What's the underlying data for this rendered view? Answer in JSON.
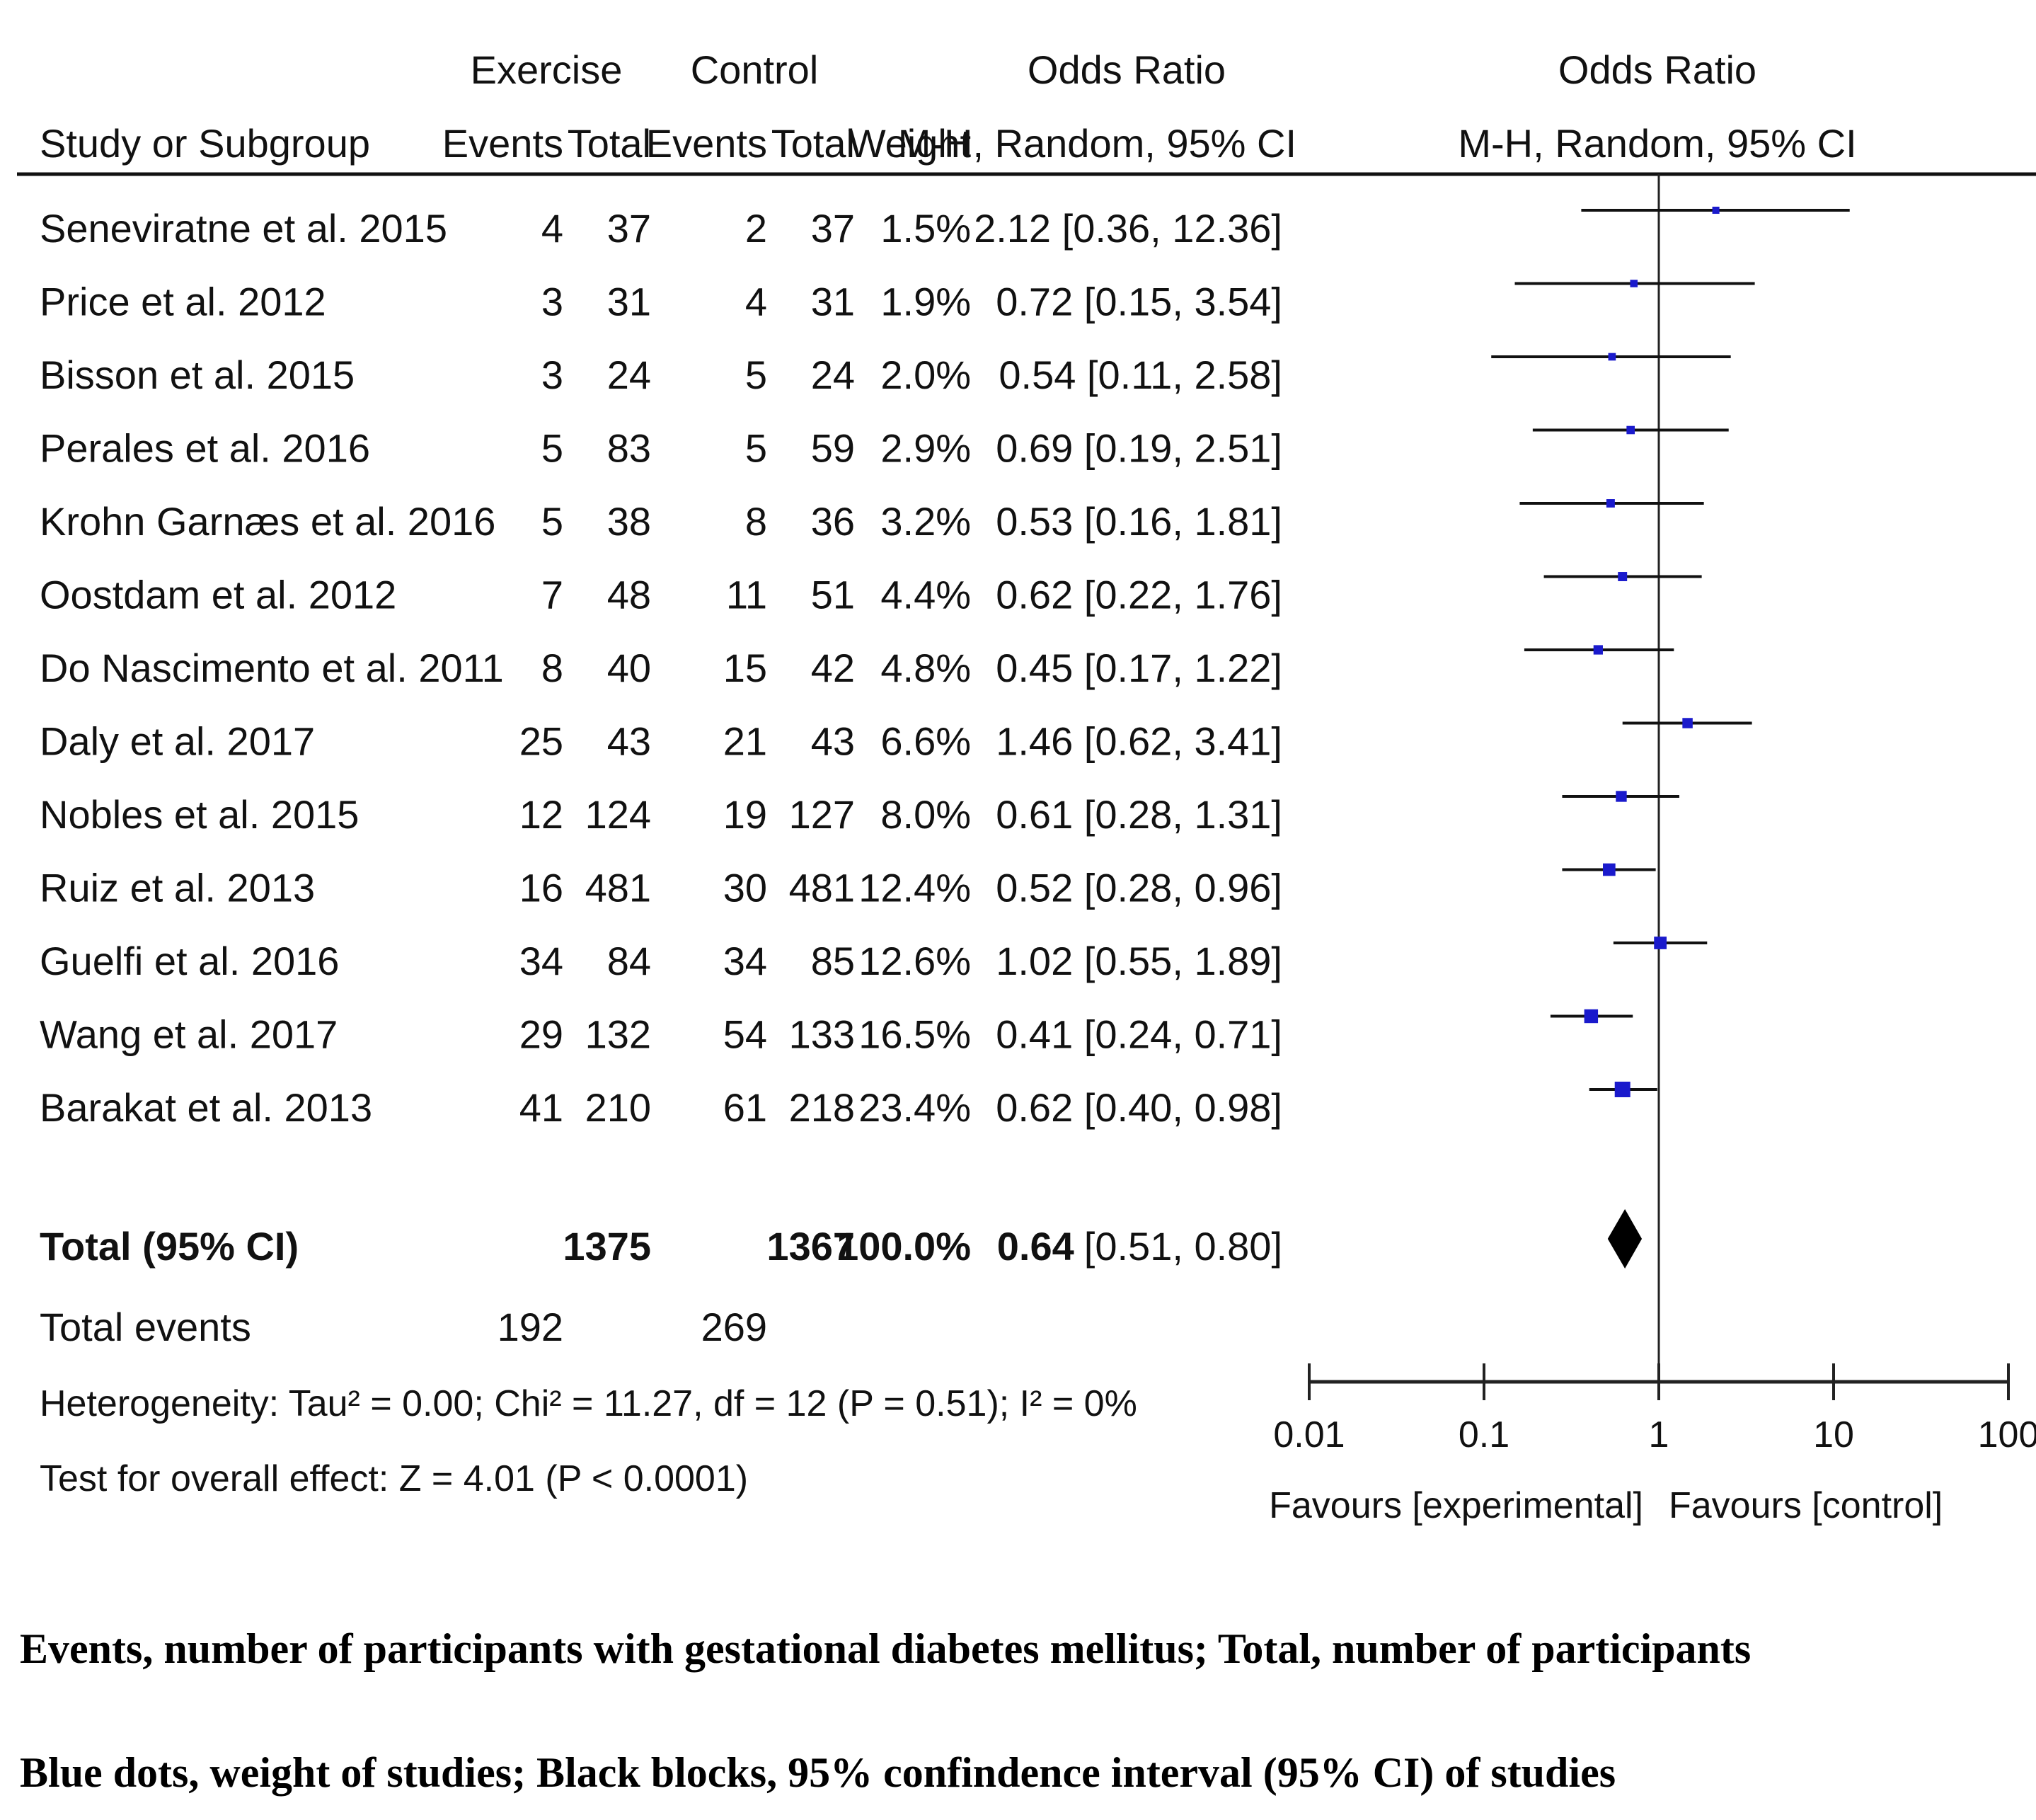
{
  "headers": {
    "exercise_group": "Exercise",
    "control_group": "Control",
    "odds_ratio_table": "Odds Ratio",
    "odds_ratio_plot": "Odds Ratio",
    "study_col": "Study or Subgroup",
    "exercise_events": "Events",
    "exercise_total": "Total",
    "control_events": "Events",
    "control_total": "Total",
    "weight": "Weight",
    "method_table": "M-H, Random, 95% CI",
    "method_plot": "M-H, Random, 95% CI"
  },
  "studies": [
    {
      "name": "Seneviratne et al. 2015",
      "ex_events": "4",
      "ex_total": "37",
      "ct_events": "2",
      "ct_total": "37",
      "weight": "1.5%",
      "ci_text": "2.12 [0.36, 12.36]"
    },
    {
      "name": "Price et al. 2012",
      "ex_events": "3",
      "ex_total": "31",
      "ct_events": "4",
      "ct_total": "31",
      "weight": "1.9%",
      "ci_text": "0.72 [0.15, 3.54]"
    },
    {
      "name": "Bisson et al. 2015",
      "ex_events": "3",
      "ex_total": "24",
      "ct_events": "5",
      "ct_total": "24",
      "weight": "2.0%",
      "ci_text": "0.54 [0.11, 2.58]"
    },
    {
      "name": "Perales et al. 2016",
      "ex_events": "5",
      "ex_total": "83",
      "ct_events": "5",
      "ct_total": "59",
      "weight": "2.9%",
      "ci_text": "0.69 [0.19, 2.51]"
    },
    {
      "name": "Krohn Garnæs et al. 2016",
      "ex_events": "5",
      "ex_total": "38",
      "ct_events": "8",
      "ct_total": "36",
      "weight": "3.2%",
      "ci_text": "0.53 [0.16, 1.81]"
    },
    {
      "name": "Oostdam et al. 2012",
      "ex_events": "7",
      "ex_total": "48",
      "ct_events": "11",
      "ct_total": "51",
      "weight": "4.4%",
      "ci_text": "0.62 [0.22, 1.76]"
    },
    {
      "name": "Do Nascimento et al. 2011",
      "ex_events": "8",
      "ex_total": "40",
      "ct_events": "15",
      "ct_total": "42",
      "weight": "4.8%",
      "ci_text": "0.45 [0.17, 1.22]"
    },
    {
      "name": "Daly et al. 2017",
      "ex_events": "25",
      "ex_total": "43",
      "ct_events": "21",
      "ct_total": "43",
      "weight": "6.6%",
      "ci_text": "1.46 [0.62, 3.41]"
    },
    {
      "name": "Nobles et al. 2015",
      "ex_events": "12",
      "ex_total": "124",
      "ct_events": "19",
      "ct_total": "127",
      "weight": "8.0%",
      "ci_text": "0.61 [0.28, 1.31]"
    },
    {
      "name": "Ruiz et al. 2013",
      "ex_events": "16",
      "ex_total": "481",
      "ct_events": "30",
      "ct_total": "481",
      "weight": "12.4%",
      "ci_text": "0.52 [0.28, 0.96]"
    },
    {
      "name": "Guelfi et al. 2016",
      "ex_events": "34",
      "ex_total": "84",
      "ct_events": "34",
      "ct_total": "85",
      "weight": "12.6%",
      "ci_text": "1.02 [0.55, 1.89]"
    },
    {
      "name": "Wang et al. 2017",
      "ex_events": "29",
      "ex_total": "132",
      "ct_events": "54",
      "ct_total": "133",
      "weight": "16.5%",
      "ci_text": "0.41 [0.24, 0.71]"
    },
    {
      "name": "Barakat et al. 2013",
      "ex_events": "41",
      "ex_total": "210",
      "ct_events": "61",
      "ct_total": "218",
      "weight": "23.4%",
      "ci_text": "0.62 [0.40, 0.98]"
    }
  ],
  "total": {
    "label": "Total (95% CI)",
    "ex_total": "1375",
    "ct_total": "1367",
    "weight": "100.0%",
    "ci_value": "0.64",
    "ci_range": "[0.51, 0.80]"
  },
  "total_events": {
    "label": "Total events",
    "ex_events": "192",
    "ct_events": "269"
  },
  "heterogeneity": "Heterogeneity: Tau² = 0.00; Chi² = 11.27, df = 12 (P = 0.51); I² = 0%",
  "overall_effect": "Test for overall effect: Z = 4.01 (P < 0.0001)",
  "axis": {
    "ticks": [
      "0.01",
      "0.1",
      "1",
      "10",
      "100"
    ],
    "favours_left": "Favours [experimental]",
    "favours_right": "Favours [control]"
  },
  "captions": [
    "Events, number of participants with gestational diabetes mellitus; Total, number of participants",
    "Blue dots, weight of studies; Black blocks, 95% confindence interval (95% CI) of studies"
  ],
  "colors": {
    "study_marker": "#1a1acc",
    "ci_line": "#111111",
    "diamond": "#000000"
  },
  "chart_data": {
    "type": "forest",
    "xscale": "log",
    "xlim": [
      0.01,
      100
    ],
    "reference_line": 1,
    "xlabel_left": "Favours [experimental]",
    "xlabel_right": "Favours [control]",
    "studies": [
      {
        "name": "Seneviratne et al. 2015",
        "or": 2.12,
        "lo": 0.36,
        "hi": 12.36,
        "weight": 1.5
      },
      {
        "name": "Price et al. 2012",
        "or": 0.72,
        "lo": 0.15,
        "hi": 3.54,
        "weight": 1.9
      },
      {
        "name": "Bisson et al. 2015",
        "or": 0.54,
        "lo": 0.11,
        "hi": 2.58,
        "weight": 2.0
      },
      {
        "name": "Perales et al. 2016",
        "or": 0.69,
        "lo": 0.19,
        "hi": 2.51,
        "weight": 2.9
      },
      {
        "name": "Krohn Garnæs et al. 2016",
        "or": 0.53,
        "lo": 0.16,
        "hi": 1.81,
        "weight": 3.2
      },
      {
        "name": "Oostdam et al. 2012",
        "or": 0.62,
        "lo": 0.22,
        "hi": 1.76,
        "weight": 4.4
      },
      {
        "name": "Do Nascimento et al. 2011",
        "or": 0.45,
        "lo": 0.17,
        "hi": 1.22,
        "weight": 4.8
      },
      {
        "name": "Daly et al. 2017",
        "or": 1.46,
        "lo": 0.62,
        "hi": 3.41,
        "weight": 6.6
      },
      {
        "name": "Nobles et al. 2015",
        "or": 0.61,
        "lo": 0.28,
        "hi": 1.31,
        "weight": 8.0
      },
      {
        "name": "Ruiz et al. 2013",
        "or": 0.52,
        "lo": 0.28,
        "hi": 0.96,
        "weight": 12.4
      },
      {
        "name": "Guelfi et al. 2016",
        "or": 1.02,
        "lo": 0.55,
        "hi": 1.89,
        "weight": 12.6
      },
      {
        "name": "Wang et al. 2017",
        "or": 0.41,
        "lo": 0.24,
        "hi": 0.71,
        "weight": 16.5
      },
      {
        "name": "Barakat et al. 2013",
        "or": 0.62,
        "lo": 0.4,
        "hi": 0.98,
        "weight": 23.4
      }
    ],
    "pooled": {
      "or": 0.64,
      "lo": 0.51,
      "hi": 0.8
    }
  }
}
